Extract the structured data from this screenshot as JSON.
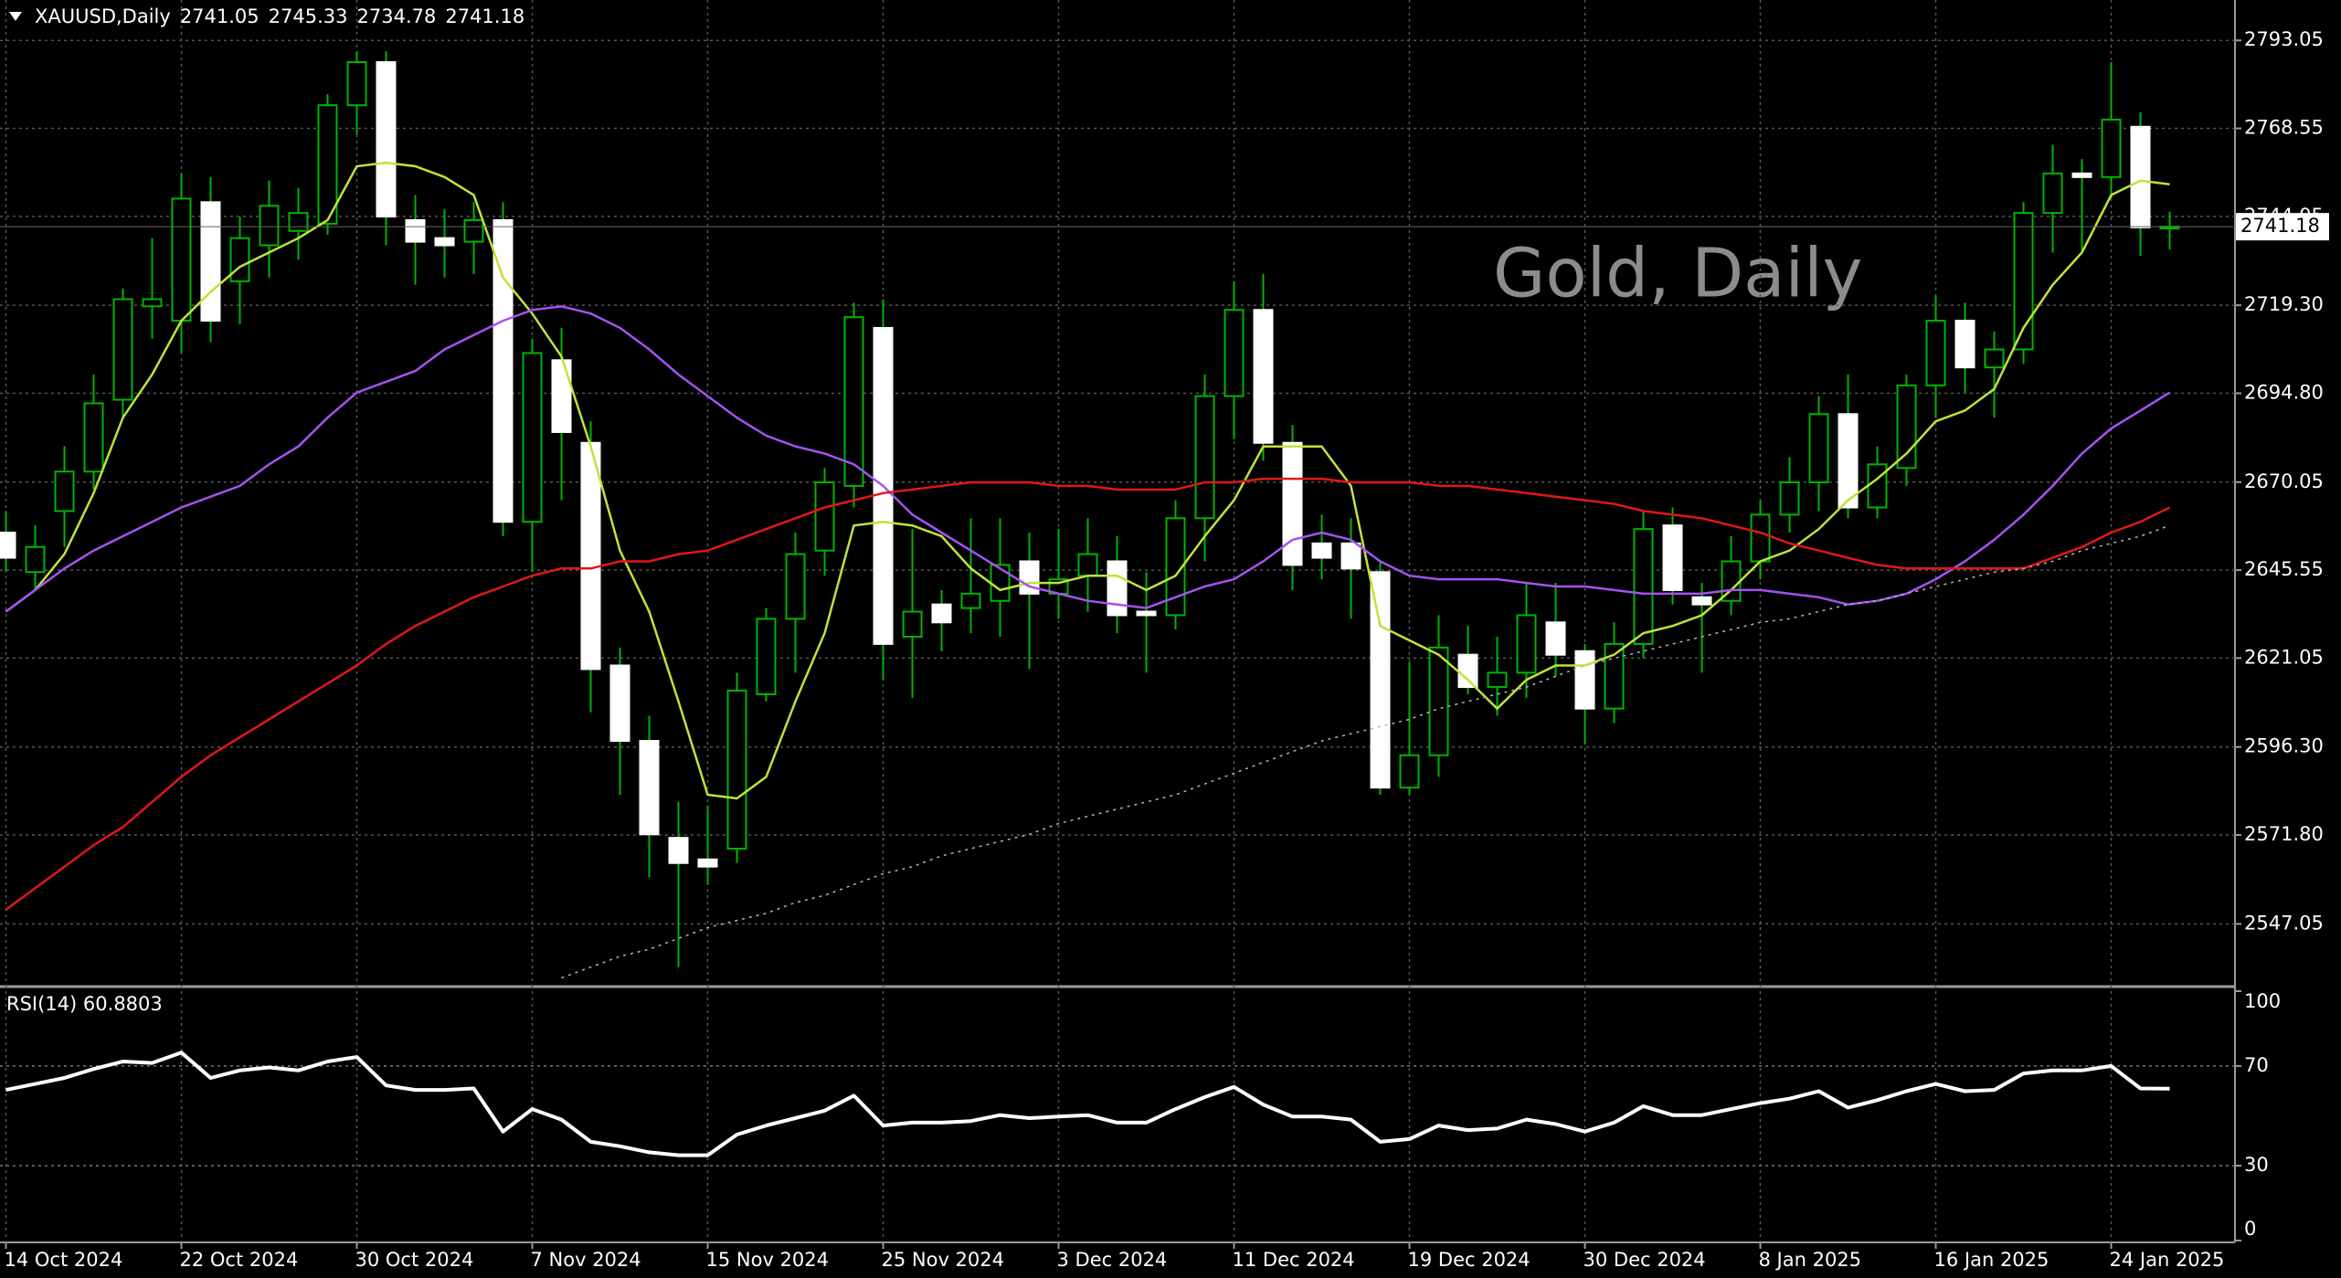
{
  "chart_data": [
    {
      "type": "candlestick",
      "title": "Gold, Daily",
      "symbol": "XAUUSD,Daily",
      "categories": [
        "14 Oct 2024",
        null,
        null,
        null,
        null,
        null,
        "22 Oct 2024",
        null,
        null,
        null,
        null,
        null,
        "30 Oct 2024",
        null,
        null,
        null,
        null,
        null,
        "7 Nov 2024",
        null,
        null,
        null,
        null,
        null,
        "15 Nov 2024",
        null,
        null,
        null,
        null,
        null,
        "25 Nov 2024",
        null,
        null,
        null,
        null,
        null,
        "3 Dec 2024",
        null,
        null,
        null,
        null,
        null,
        "11 Dec 2024",
        null,
        null,
        null,
        null,
        null,
        "19 Dec 2024",
        null,
        null,
        null,
        null,
        null,
        "30 Dec 2024",
        null,
        null,
        null,
        null,
        null,
        "8 Jan 2025",
        null,
        null,
        null,
        null,
        null,
        "16 Jan 2025",
        null,
        null,
        null,
        null,
        null,
        "24 Jan 2025",
        null,
        null
      ],
      "open": [
        2656,
        2645,
        2662,
        2673,
        2693,
        2719,
        2715,
        2748,
        2726,
        2736,
        2740,
        2742,
        2775,
        2787,
        2743,
        2738,
        2737,
        2743,
        2659,
        2704,
        2681,
        2619,
        2598,
        2571,
        2565,
        2568,
        2611,
        2632,
        2651,
        2669,
        2713,
        2627,
        2636,
        2635,
        2637,
        2648,
        2639,
        2644,
        2648,
        2634,
        2633,
        2660,
        2694,
        2718,
        2681,
        2653,
        2653,
        2645,
        2585,
        2594,
        2622,
        2613,
        2617,
        2631,
        2623,
        2607,
        2625,
        2658,
        2638,
        2637,
        2648,
        2661,
        2670,
        2689,
        2663,
        2674,
        2697,
        2715,
        2702,
        2707,
        2745,
        2756,
        2755,
        2769,
        2741.05
      ],
      "high": [
        2662,
        2658,
        2680,
        2700,
        2724,
        2738,
        2756,
        2755,
        2744,
        2754,
        2752,
        2778,
        2790,
        2790,
        2750,
        2746,
        2748,
        2748,
        2710,
        2713,
        2687,
        2624,
        2605,
        2581,
        2580,
        2617,
        2635,
        2656,
        2674,
        2720,
        2721,
        2657,
        2640,
        2660,
        2660,
        2656,
        2657,
        2660,
        2655,
        2645,
        2665,
        2700,
        2726,
        2728,
        2686,
        2661,
        2660,
        2648,
        2620,
        2633,
        2630,
        2627,
        2642,
        2642,
        2625,
        2631,
        2662,
        2663,
        2642,
        2655,
        2665,
        2677,
        2694,
        2700,
        2680,
        2700,
        2722,
        2720,
        2712,
        2748,
        2764,
        2760,
        2787,
        2773,
        2745.33
      ],
      "low": [
        2645,
        2640,
        2652,
        2668,
        2688,
        2710,
        2706,
        2709,
        2714,
        2727,
        2732,
        2739,
        2767,
        2736,
        2725,
        2727,
        2728,
        2655,
        2645,
        2665,
        2606,
        2583,
        2560,
        2535,
        2558,
        2564,
        2609,
        2617,
        2644,
        2663,
        2615,
        2610,
        2623,
        2628,
        2627,
        2618,
        2632,
        2634,
        2628,
        2617,
        2629,
        2648,
        2682,
        2676,
        2640,
        2643,
        2632,
        2583,
        2583,
        2588,
        2611,
        2605,
        2610,
        2616,
        2597,
        2603,
        2621,
        2636,
        2617,
        2633,
        2643,
        2656,
        2662,
        2660,
        2660,
        2669,
        2688,
        2695,
        2688,
        2703,
        2734,
        2734,
        2749,
        2733,
        2734.78
      ],
      "close": [
        2649,
        2652,
        2673,
        2692,
        2721,
        2721,
        2749,
        2715,
        2738,
        2747,
        2745,
        2775,
        2787,
        2744,
        2737,
        2736,
        2743,
        2659,
        2706,
        2684,
        2618,
        2598,
        2572,
        2564,
        2563,
        2612,
        2632,
        2650,
        2670,
        2716,
        2625,
        2634,
        2631,
        2639,
        2647,
        2639,
        2643,
        2650,
        2633,
        2633,
        2660,
        2694,
        2718,
        2681,
        2647,
        2649,
        2646,
        2585,
        2594,
        2624,
        2613,
        2617,
        2633,
        2622,
        2607,
        2625,
        2657,
        2640,
        2636,
        2648,
        2661,
        2670,
        2689,
        2663,
        2675,
        2697,
        2715,
        2702,
        2707,
        2745,
        2756,
        2755,
        2771,
        2741,
        2741.18
      ],
      "up_color": "#00b400",
      "down_color": "#ffffff",
      "series": [
        {
          "color": "#bfe33a",
          "values": [
            2634,
            2640,
            2650,
            2667,
            2688,
            2700,
            2715,
            2723,
            2730,
            2734,
            2738,
            2743,
            2758,
            2759,
            2758,
            2755,
            2750,
            2727,
            2717,
            2705,
            2680,
            2651,
            2634,
            2609,
            2583,
            2582,
            2588,
            2609,
            2628,
            2658,
            2659,
            2658,
            2655,
            2646,
            2640,
            2642,
            2642,
            2644,
            2644,
            2640,
            2644,
            2655,
            2665,
            2680,
            2680,
            2680,
            2669,
            2630,
            2626,
            2622,
            2615,
            2607,
            2615,
            2619,
            2619,
            2622,
            2628,
            2630,
            2633,
            2640,
            2648,
            2651,
            2657,
            2665,
            2671,
            2678,
            2687,
            2690,
            2696,
            2713,
            2725,
            2734,
            2750,
            2754,
            2753
          ]
        },
        {
          "color": "#a552f0",
          "values": [
            2634,
            2640,
            2646,
            2651,
            2655,
            2659,
            2663,
            2666,
            2669,
            2675,
            2680,
            2688,
            2695,
            2698,
            2701,
            2707,
            2711,
            2715,
            2718,
            2719,
            2717,
            2713,
            2707,
            2700,
            2694,
            2688,
            2683,
            2680,
            2678,
            2675,
            2669,
            2661,
            2656,
            2651,
            2646,
            2641,
            2639,
            2637,
            2636,
            2635,
            2638,
            2641,
            2643,
            2648,
            2654,
            2656,
            2654,
            2648,
            2644,
            2643,
            2643,
            2643,
            2642,
            2641,
            2641,
            2640,
            2639,
            2639,
            2639,
            2640,
            2640,
            2639,
            2638,
            2636,
            2637,
            2639,
            2643,
            2648,
            2654,
            2661,
            2669,
            2678,
            2685,
            2690,
            2695
          ]
        },
        {
          "color": "#e01818",
          "values": [
            2551,
            2557,
            2563,
            2569,
            2574,
            2581,
            2588,
            2594,
            2599,
            2604,
            2609,
            2614,
            2619,
            2625,
            2630,
            2634,
            2638,
            2641,
            2644,
            2646,
            2646,
            2648,
            2648,
            2650,
            2651,
            2654,
            2657,
            2660,
            2663,
            2665,
            2667,
            2668,
            2669,
            2670,
            2670,
            2670,
            2669,
            2669,
            2668,
            2668,
            2668,
            2670,
            2670,
            2671,
            2671,
            2671,
            2670,
            2670,
            2670,
            2669,
            2669,
            2668,
            2667,
            2666,
            2665,
            2664,
            2662,
            2661,
            2660,
            2658,
            2656,
            2653,
            2651,
            2649,
            2647,
            2646,
            2646,
            2646,
            2646,
            2646,
            2649,
            2652,
            2656,
            2659,
            2663
          ]
        },
        {
          "color": "#b4b4b4",
          "dashed": true,
          "values": [
            null,
            null,
            null,
            null,
            null,
            null,
            null,
            null,
            null,
            null,
            null,
            null,
            null,
            null,
            null,
            null,
            null,
            null,
            null,
            2532,
            2535,
            2538,
            2540,
            2543,
            2546,
            2548,
            2550,
            2553,
            2555,
            2558,
            2561,
            2563,
            2566,
            2568,
            2570,
            2572,
            2575,
            2577,
            2579,
            2581,
            2583,
            2586,
            2589,
            2592,
            2595,
            2598,
            2600,
            2602,
            2604,
            2607,
            2609,
            2611,
            2613,
            2616,
            2619,
            2621,
            2623,
            2625,
            2627,
            2629,
            2631,
            2632,
            2634,
            2636,
            2637,
            2639,
            2641,
            2643,
            2645,
            2646,
            2648,
            2651,
            2653,
            2655,
            2658
          ]
        }
      ],
      "ylim": [
        2530.1,
        2804.3
      ],
      "yticks": [
        2793.05,
        2768.55,
        2744.05,
        {
          "value": 2719.3,
          "label": "2719.30"
        },
        {
          "value": 2694.8,
          "label": "2694.80"
        },
        2670.05,
        2645.55,
        2621.05,
        {
          "value": 2596.3,
          "label": "2596.30"
        },
        {
          "value": 2571.8,
          "label": "2571.80"
        },
        2547.05
      ],
      "grid": true
    },
    {
      "type": "line",
      "title": "RSI(14)",
      "color": "#ffffff",
      "values": [
        60.4,
        62.8,
        65.2,
        68.8,
        71.8,
        71.2,
        75.4,
        65.2,
        68.2,
        69.4,
        68.2,
        71.8,
        73.6,
        62.2,
        60.4,
        60.4,
        61.0,
        43.7,
        52.7,
        48.5,
        39.6,
        37.8,
        35.4,
        34.2,
        34.2,
        42.5,
        46.1,
        49.1,
        52.1,
        58.1,
        46.1,
        47.3,
        47.3,
        47.9,
        50.3,
        49.1,
        49.7,
        50.3,
        47.3,
        47.3,
        52.7,
        57.5,
        61.6,
        54.5,
        49.7,
        49.7,
        48.5,
        39.6,
        40.7,
        46.1,
        44.3,
        44.9,
        48.5,
        46.7,
        43.7,
        47.3,
        53.9,
        50.3,
        50.3,
        52.7,
        55.1,
        56.9,
        59.9,
        53.3,
        56.3,
        59.9,
        62.8,
        59.9,
        60.4,
        67.0,
        68.2,
        68.2,
        70.0,
        61.0,
        60.8803
      ],
      "ylim": [
        0,
        100
      ],
      "yticks": [
        100,
        70,
        30,
        0
      ]
    }
  ]
}
